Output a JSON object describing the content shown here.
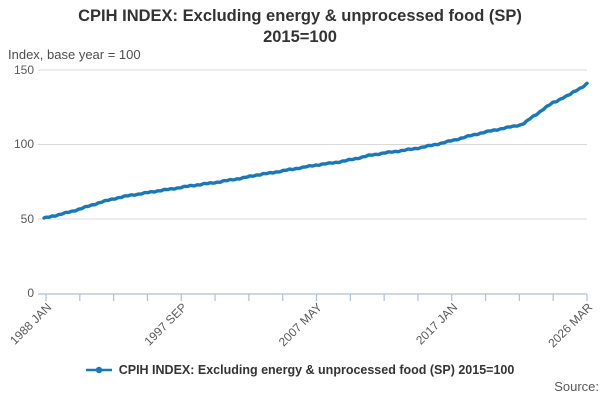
{
  "header": {
    "title_line1": "CPIH INDEX: Excluding energy & unprocessed food (SP)",
    "title_line2": "2015=100",
    "axis_note": "Index, base year = 100"
  },
  "legend": {
    "label": "CPIH INDEX: Excluding energy & unprocessed food (SP) 2015=100",
    "marker": "line-with-dot-icon"
  },
  "footer": {
    "source_label": "Source:"
  },
  "colors": {
    "series_line": "#1778bc",
    "axis_line": "#b1bfda",
    "gridline": "#d9d9d9",
    "tick_text": "#595959",
    "title_text": "#333333"
  },
  "chart_data": {
    "type": "line",
    "title": "CPIH INDEX: Excluding energy & unprocessed food (SP) 2015=100",
    "ylabel": "Index, base year = 100",
    "ylim": [
      0,
      150
    ],
    "yticks": [
      150,
      100,
      50,
      0
    ],
    "grid": "horizontal-only",
    "legend_position": "bottom",
    "x_range": {
      "start": "1988-01",
      "end": "2026-03",
      "frequency": "monthly"
    },
    "xticks_total": 17,
    "xtick_labels": [
      {
        "label": "1988 JAN",
        "tick_index": 0
      },
      {
        "label": "1997 SEP",
        "tick_index": 4
      },
      {
        "label": "2007 MAY",
        "tick_index": 8
      },
      {
        "label": "2017 JAN",
        "tick_index": 12
      },
      {
        "label": "2026 MAR",
        "tick_index": 16
      }
    ],
    "series": [
      {
        "name": "CPIH INDEX: Excluding energy & unprocessed food (SP) 2015=100",
        "color": "#1778bc",
        "anchor_points": [
          [
            "1988-01",
            50.5
          ],
          [
            "1989-01",
            52.8
          ],
          [
            "1990-01",
            55.2
          ],
          [
            "1991-01",
            58.2
          ],
          [
            "1992-01",
            61.3
          ],
          [
            "1993-01",
            63.8
          ],
          [
            "1994-01",
            65.8
          ],
          [
            "1995-01",
            67.2
          ],
          [
            "1996-01",
            68.9
          ],
          [
            "1997-01",
            70.2
          ],
          [
            "1998-01",
            71.8
          ],
          [
            "1999-01",
            73.2
          ],
          [
            "2000-01",
            74.4
          ],
          [
            "2001-01",
            76.0
          ],
          [
            "2002-01",
            77.6
          ],
          [
            "2003-01",
            79.6
          ],
          [
            "2004-01",
            81.0
          ],
          [
            "2005-01",
            82.7
          ],
          [
            "2006-01",
            84.3
          ],
          [
            "2007-01",
            86.0
          ],
          [
            "2008-01",
            87.3
          ],
          [
            "2009-01",
            88.7
          ],
          [
            "2010-01",
            90.7
          ],
          [
            "2011-01",
            92.9
          ],
          [
            "2012-01",
            94.4
          ],
          [
            "2013-01",
            95.7
          ],
          [
            "2014-01",
            97.1
          ],
          [
            "2015-01",
            98.9
          ],
          [
            "2016-01",
            101.0
          ],
          [
            "2017-01",
            103.4
          ],
          [
            "2018-01",
            106.0
          ],
          [
            "2019-01",
            108.3
          ],
          [
            "2020-01",
            110.3
          ],
          [
            "2021-01",
            112.2
          ],
          [
            "2021-07",
            113.2
          ],
          [
            "2021-10",
            114.3
          ],
          [
            "2022-01",
            116.0
          ],
          [
            "2022-04",
            118.0
          ],
          [
            "2022-07",
            119.5
          ],
          [
            "2022-10",
            121.3
          ],
          [
            "2023-01",
            123.0
          ],
          [
            "2023-04",
            124.8
          ],
          [
            "2023-07",
            126.3
          ],
          [
            "2023-10",
            128.0
          ],
          [
            "2024-01",
            129.0
          ],
          [
            "2024-04",
            130.3
          ],
          [
            "2024-07",
            131.5
          ],
          [
            "2024-10",
            132.5
          ],
          [
            "2025-01",
            133.7
          ],
          [
            "2025-04",
            135.5
          ],
          [
            "2025-07",
            136.8
          ],
          [
            "2025-10",
            138.2
          ],
          [
            "2026-01",
            139.5
          ],
          [
            "2026-03",
            140.8
          ]
        ]
      }
    ]
  }
}
